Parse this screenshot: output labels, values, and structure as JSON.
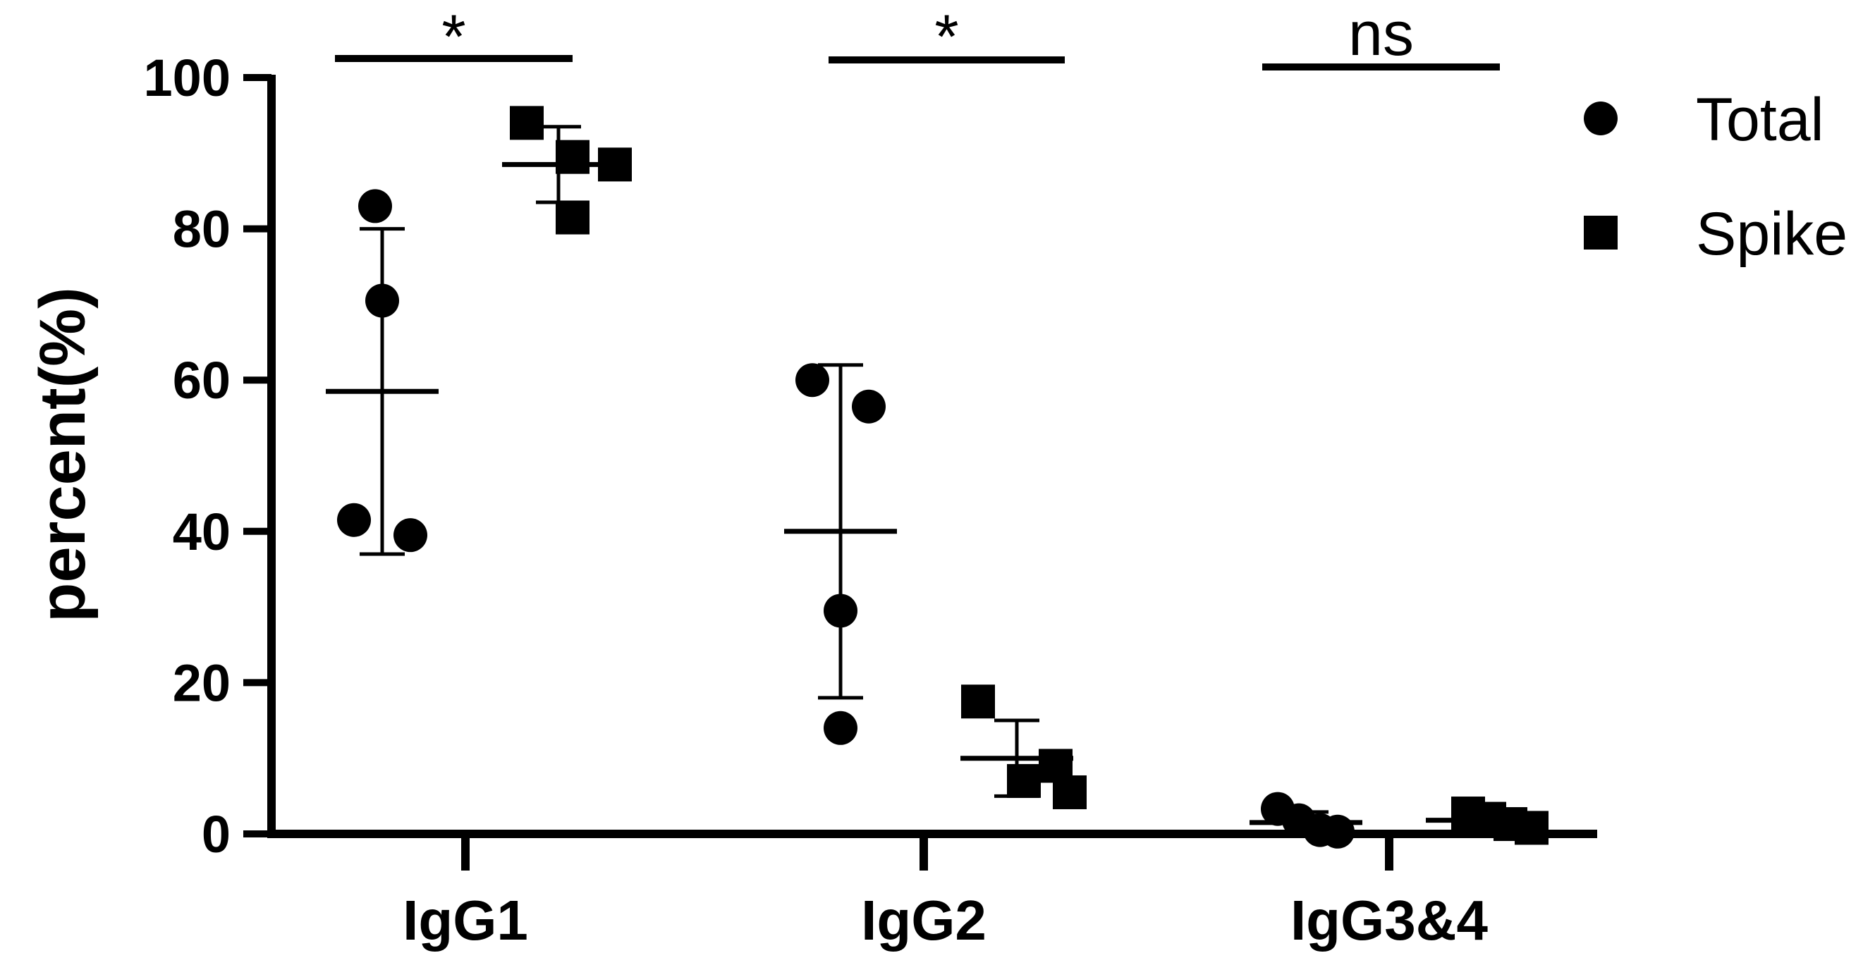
{
  "chart_data": {
    "type": "scatter",
    "ylabel": "percent(%)",
    "ylim": [
      0,
      100
    ],
    "yticks": [
      "0",
      "20",
      "40",
      "60",
      "80",
      "100"
    ],
    "categories": [
      "IgG1",
      "IgG2",
      "IgG3&4"
    ],
    "legend": {
      "position": "top-right"
    },
    "series": [
      {
        "name": "Total",
        "marker": "circle",
        "points": [
          [
            83,
            70.5,
            41.5,
            39.5
          ],
          [
            60,
            56.5,
            29.5,
            14
          ],
          [
            3.3,
            1.8,
            0.5,
            0.3
          ]
        ],
        "mean": [
          58.5,
          40,
          1.5
        ],
        "sd": [
          21.5,
          22,
          1.4
        ]
      },
      {
        "name": "Spike",
        "marker": "square",
        "points": [
          [
            94,
            89.5,
            88.5,
            81.5
          ],
          [
            17.5,
            9,
            7,
            5.5
          ],
          [
            2.7,
            2,
            1.3,
            0.8
          ]
        ],
        "mean": [
          88.5,
          10,
          1.8
        ],
        "sd": [
          5,
          5,
          0.8
        ]
      }
    ],
    "significance": [
      "*",
      "*",
      "ns"
    ]
  }
}
